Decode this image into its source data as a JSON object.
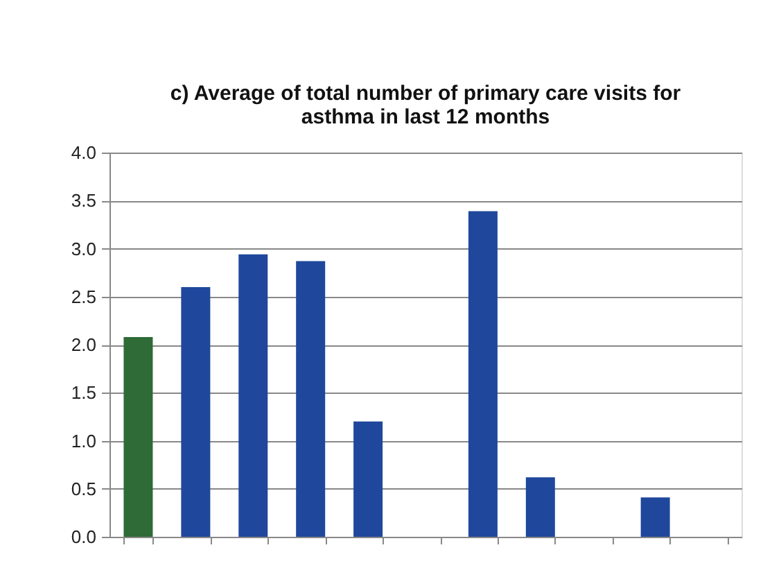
{
  "chart_data": {
    "type": "bar",
    "title": [
      "c) Average of total number of primary care visits for",
      "asthma in last 12 months"
    ],
    "categories": [
      null,
      null,
      null,
      null,
      null,
      null,
      null,
      null,
      null,
      null,
      null
    ],
    "values": [
      2.08,
      2.6,
      2.94,
      2.87,
      1.2,
      null,
      3.39,
      0.62,
      null,
      0.41,
      null
    ],
    "colors": [
      "#2e6b37",
      "#1f489c",
      "#1f489c",
      "#1f489c",
      "#1f489c",
      "#1f489c",
      "#1f489c",
      "#1f489c",
      "#1f489c",
      "#1f489c",
      "#1f489c"
    ],
    "ylim": [
      0,
      4
    ],
    "yticks": [
      {
        "value": 0,
        "label": "0.0"
      },
      {
        "value": 0.5,
        "label": "0.5"
      },
      {
        "value": 1,
        "label": "1.0"
      },
      {
        "value": 1.5,
        "label": "1.5"
      },
      {
        "value": 2,
        "label": "2.0"
      },
      {
        "value": 2.5,
        "label": "2.5"
      },
      {
        "value": 3,
        "label": "3.0"
      },
      {
        "value": 3.5,
        "label": "3.5"
      },
      {
        "value": 4,
        "label": "4.0"
      }
    ],
    "grid": "y"
  }
}
